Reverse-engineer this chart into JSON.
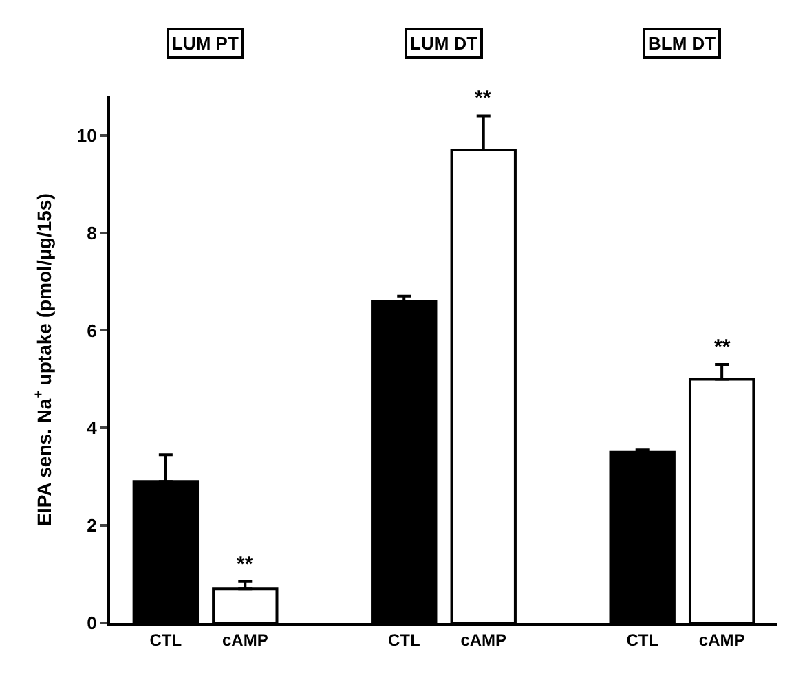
{
  "chart_data": {
    "type": "bar",
    "categories": [
      "CTL",
      "cAMP",
      null,
      "CTL",
      "cAMP",
      null,
      "CTL",
      "cAMP"
    ],
    "values": [
      2.9,
      0.7,
      null,
      6.6,
      9.7,
      null,
      3.5,
      5.0
    ],
    "colors": [
      "#000000",
      "#ffffff",
      null,
      "#000000",
      "#ffffff",
      null,
      "#000000",
      "#ffffff"
    ],
    "errors": [
      [
        2.9,
        3.45
      ],
      [
        0.7,
        0.85
      ],
      null,
      [
        6.6,
        6.7
      ],
      [
        9.7,
        10.4
      ],
      null,
      [
        3.5,
        3.55
      ],
      [
        5.0,
        5.3
      ]
    ],
    "ylabel": "EIPA sens. Na$^{+}$ uptake (pmol/µg/15s)",
    "ylim": [
      0,
      10.8
    ],
    "yticks": [
      0,
      2,
      4,
      6,
      8,
      10
    ],
    "annotations": [
      "LUM PT",
      "LUM DT",
      "BLM DT",
      "**",
      "**",
      "**"
    ],
    "legend": false
  }
}
